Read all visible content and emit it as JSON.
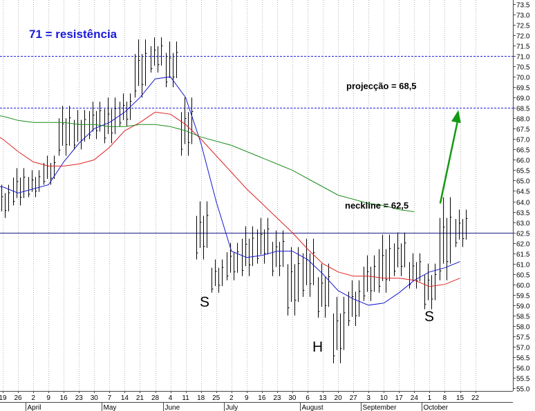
{
  "chart_data": {
    "type": "bar",
    "subtype": "ohlc-price-chart-with-moving-averages",
    "ylim": [
      55.0,
      73.5
    ],
    "y_tick_step": 0.5,
    "y_axis_side": "right",
    "grid": {
      "vertical": "dotted",
      "horizontal": false
    },
    "x_day_labels": [
      "19",
      "26",
      "2",
      "9",
      "16",
      "23",
      "30",
      "7",
      "14",
      "21",
      "28",
      "4",
      "11",
      "18",
      "25",
      "2",
      "9",
      "16",
      "23",
      "30",
      "6",
      "13",
      "20",
      "27",
      "3",
      "10",
      "17",
      "24",
      "1",
      "8",
      "15",
      "22"
    ],
    "x_months": [
      "April",
      "May",
      "June",
      "July",
      "August",
      "September",
      "October"
    ],
    "reference_lines": [
      {
        "value": 71.0,
        "style": "dashed",
        "color": "#1a1adc"
      },
      {
        "value": 68.5,
        "style": "dashed",
        "color": "#1a1adc"
      },
      {
        "value": 62.5,
        "style": "solid",
        "color": "#1a1a8a"
      }
    ],
    "moving_averages": [
      {
        "color": "#1515cc",
        "points": [
          [
            -1.0,
            64.7
          ],
          [
            0,
            64.7
          ],
          [
            1,
            64.4
          ],
          [
            2,
            64.6
          ],
          [
            3,
            64.8
          ],
          [
            4,
            65.9
          ],
          [
            5,
            66.8
          ],
          [
            6,
            67.5
          ],
          [
            7,
            67.8
          ],
          [
            8,
            68.3
          ],
          [
            9,
            69.0
          ],
          [
            10,
            69.9
          ],
          [
            11,
            70.0
          ],
          [
            12,
            69.0
          ],
          [
            13,
            66.8
          ],
          [
            14,
            64.0
          ],
          [
            15,
            61.6
          ],
          [
            16,
            61.3
          ],
          [
            17,
            61.4
          ],
          [
            18,
            61.6
          ],
          [
            19,
            61.6
          ],
          [
            20,
            61.2
          ],
          [
            21,
            60.5
          ],
          [
            22,
            59.7
          ],
          [
            23,
            59.3
          ],
          [
            24,
            59.0
          ],
          [
            25,
            59.1
          ],
          [
            26,
            59.6
          ],
          [
            27,
            60.2
          ],
          [
            28,
            60.6
          ],
          [
            29,
            60.8
          ],
          [
            30,
            61.1
          ]
        ]
      },
      {
        "color": "#dd2020",
        "points": [
          [
            -1.0,
            67.4
          ],
          [
            0,
            67.0
          ],
          [
            1,
            66.4
          ],
          [
            2,
            65.9
          ],
          [
            3,
            65.7
          ],
          [
            4,
            65.7
          ],
          [
            5,
            65.8
          ],
          [
            6,
            66.0
          ],
          [
            7,
            66.6
          ],
          [
            8,
            67.4
          ],
          [
            9,
            67.8
          ],
          [
            10,
            68.3
          ],
          [
            11,
            68.2
          ],
          [
            12,
            67.7
          ],
          [
            13,
            67.0
          ],
          [
            14,
            66.2
          ],
          [
            15,
            65.4
          ],
          [
            16,
            64.6
          ],
          [
            17,
            63.9
          ],
          [
            18,
            63.2
          ],
          [
            19,
            62.5
          ],
          [
            20,
            61.7
          ],
          [
            21,
            61.0
          ],
          [
            22,
            60.6
          ],
          [
            23,
            60.4
          ],
          [
            24,
            60.4
          ],
          [
            25,
            60.3
          ],
          [
            26,
            60.3
          ],
          [
            27,
            60.2
          ],
          [
            28,
            59.9
          ],
          [
            29,
            60.0
          ],
          [
            30,
            60.3
          ]
        ]
      },
      {
        "color": "#1a8a1a",
        "points": [
          [
            -1.0,
            68.2
          ],
          [
            0,
            68.1
          ],
          [
            1,
            67.9
          ],
          [
            2,
            67.8
          ],
          [
            3,
            67.8
          ],
          [
            4,
            67.8
          ],
          [
            5,
            67.7
          ],
          [
            6,
            67.7
          ],
          [
            7,
            67.6
          ],
          [
            8,
            67.6
          ],
          [
            9,
            67.7
          ],
          [
            10,
            67.7
          ],
          [
            11,
            67.6
          ],
          [
            12,
            67.4
          ],
          [
            13,
            67.1
          ],
          [
            14,
            66.9
          ],
          [
            15,
            66.7
          ],
          [
            16,
            66.4
          ],
          [
            17,
            66.1
          ],
          [
            18,
            65.8
          ],
          [
            19,
            65.5
          ],
          [
            20,
            65.1
          ],
          [
            21,
            64.7
          ],
          [
            22,
            64.3
          ],
          [
            23,
            64.1
          ],
          [
            24,
            63.9
          ],
          [
            25,
            63.8
          ],
          [
            26,
            63.6
          ],
          [
            27,
            63.5
          ]
        ]
      }
    ],
    "ohlc_weekly": [
      {
        "week": "19",
        "low": 63.2,
        "high": 64.8
      },
      {
        "week": "26",
        "low": 63.8,
        "high": 65.6
      },
      {
        "week": "2",
        "low": 64.2,
        "high": 65.5
      },
      {
        "week": "9",
        "low": 64.8,
        "high": 66.2
      },
      {
        "week": "16",
        "low": 66.2,
        "high": 68.6
      },
      {
        "week": "23",
        "low": 66.5,
        "high": 68.4
      },
      {
        "week": "30",
        "low": 67.0,
        "high": 68.8
      },
      {
        "week": "7",
        "low": 66.8,
        "high": 69.0
      },
      {
        "week": "14",
        "low": 67.6,
        "high": 69.2
      },
      {
        "week": "21",
        "low": 69.0,
        "high": 71.8
      },
      {
        "week": "28",
        "low": 70.2,
        "high": 71.9
      },
      {
        "week": "4",
        "low": 69.5,
        "high": 71.7
      },
      {
        "week": "11",
        "low": 66.2,
        "high": 69.0
      },
      {
        "week": "18",
        "low": 61.2,
        "high": 64.0
      },
      {
        "week": "25",
        "low": 59.6,
        "high": 61.2
      },
      {
        "week": "2",
        "low": 60.2,
        "high": 62.0
      },
      {
        "week": "9",
        "low": 60.4,
        "high": 62.8
      },
      {
        "week": "16",
        "low": 61.0,
        "high": 63.2
      },
      {
        "week": "23",
        "low": 60.4,
        "high": 62.6
      },
      {
        "week": "30",
        "low": 58.5,
        "high": 61.8
      },
      {
        "week": "6",
        "low": 59.4,
        "high": 62.2
      },
      {
        "week": "13",
        "low": 58.4,
        "high": 61.0
      },
      {
        "week": "20",
        "low": 56.2,
        "high": 59.4
      },
      {
        "week": "27",
        "low": 58.0,
        "high": 60.2
      },
      {
        "week": "3",
        "low": 59.2,
        "high": 61.4
      },
      {
        "week": "10",
        "low": 59.6,
        "high": 62.4
      },
      {
        "week": "17",
        "low": 60.4,
        "high": 62.5
      },
      {
        "week": "24",
        "low": 59.8,
        "high": 61.5
      },
      {
        "week": "1",
        "low": 58.8,
        "high": 61.0
      },
      {
        "week": "8",
        "low": 60.2,
        "high": 64.2
      },
      {
        "week": "15",
        "low": 61.8,
        "high": 63.6
      }
    ],
    "annotations": [
      {
        "text": "71 = resistência",
        "color": "#1a1adc"
      },
      {
        "text": "projecção = 68,5",
        "color": "#000000"
      },
      {
        "text": "neckline = 62,5",
        "color": "#000000"
      },
      {
        "text": "S",
        "color": "#000000"
      },
      {
        "text": "H",
        "color": "#000000"
      },
      {
        "text": "S",
        "color": "#000000"
      }
    ],
    "arrow": {
      "color": "#119911",
      "from": [
        28.7,
        63.9
      ],
      "to": [
        29.9,
        68.4
      ]
    }
  }
}
